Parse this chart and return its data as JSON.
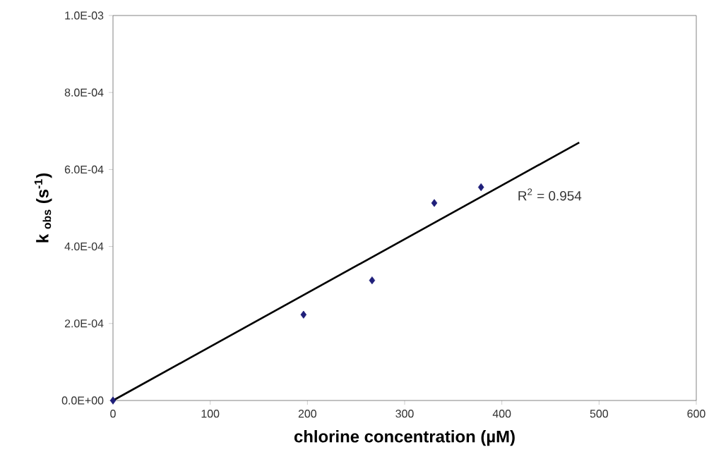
{
  "chart_data": {
    "type": "scatter",
    "xlabel": "chlorine concentration (µM)",
    "ylabel": "k $_{obs}$ (s$^{-1}$)",
    "series": [
      {
        "color": "#1f1f7a",
        "marker": "diamond",
        "x": [
          0,
          196,
          266.5,
          330.5,
          378.6
        ],
        "values": [
          0,
          0.000223,
          0.000312,
          0.000513,
          0.000554
        ]
      },
      {
        "type": "line",
        "color": "#000000",
        "marker": "none",
        "line_style": "solid",
        "x": [
          0,
          479.6
        ],
        "values": [
          0,
          0.00067
        ]
      }
    ],
    "annotations": [
      "R$^{2}$ = 0.954"
    ],
    "xlim": [
      0,
      600
    ],
    "xticks": [
      0,
      100,
      200,
      300,
      400,
      500,
      600
    ],
    "ylim": [
      0,
      0.001
    ],
    "yticks": [
      {
        "value": 0,
        "label": "0.0E+00"
      },
      {
        "value": 0.0002,
        "label": "2.0E-04"
      },
      {
        "value": 0.0004,
        "label": "4.0E-04"
      },
      {
        "value": 0.0006,
        "label": "6.0E-04"
      },
      {
        "value": 0.0008,
        "label": "8.0E-04"
      },
      {
        "value": 0.001,
        "label": "1.0E-03"
      }
    ],
    "grid": false
  }
}
